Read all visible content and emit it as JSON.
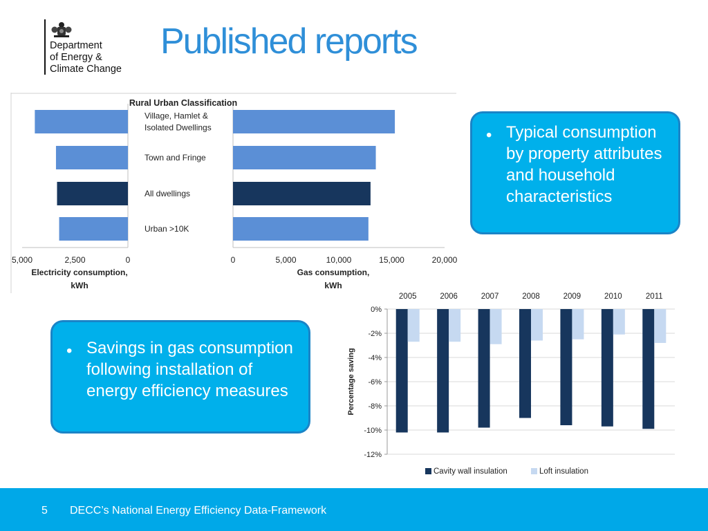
{
  "logo": {
    "lines": [
      "Department",
      "of Energy &",
      "Climate Change"
    ],
    "icon": "royal-crest-icon"
  },
  "title": "Published reports",
  "callouts": {
    "typical": {
      "bullet": "•",
      "text": "Typical consumption by property attributes and household characteristics"
    },
    "savings": {
      "bullet": "•",
      "text": "Savings in gas consumption following installation of energy efficiency measures"
    }
  },
  "footer": {
    "page_number": "5",
    "text": "DECC’s National Energy Efficiency Data-Framework"
  },
  "colors": {
    "light_bar": "#5b8fd6",
    "dark_bar": "#17365d",
    "loft": "#c6d9f1",
    "callout_fill": "#00b0eb",
    "callout_border": "#1a84c7",
    "footer": "#00a8e8",
    "title": "#2f8fd8"
  },
  "chart_data": [
    {
      "type": "bar",
      "orientation": "horizontal",
      "title": "Rural Urban Classification",
      "categories": [
        [
          "Village, Hamlet &",
          "Isolated Dwellings"
        ],
        [
          "Town and Fringe"
        ],
        [
          "All dwellings"
        ],
        [
          "Urban >10K"
        ]
      ],
      "series": [
        {
          "name": "Electricity consumption",
          "values": [
            4400,
            3400,
            3350,
            3250
          ]
        },
        {
          "name": "Gas consumption",
          "values": [
            15300,
            13500,
            13000,
            12800
          ]
        }
      ],
      "highlight_index": 2,
      "electricity_axis": {
        "label": "Electricity consumption, kWh",
        "ticks": [
          "5,000",
          "2,500",
          "0"
        ],
        "tick_values": [
          5000,
          2500,
          0
        ],
        "xlim": [
          0,
          5000
        ],
        "reversed": true
      },
      "gas_axis": {
        "label": "Gas consumption, kWh",
        "ticks": [
          "0",
          "5,000",
          "10,000",
          "15,000",
          "20,000"
        ],
        "tick_values": [
          0,
          5000,
          10000,
          15000,
          20000
        ],
        "xlim": [
          0,
          20000
        ]
      },
      "grid": false
    },
    {
      "type": "bar",
      "categories": [
        "2005",
        "2006",
        "2007",
        "2008",
        "2009",
        "2010",
        "2011"
      ],
      "series": [
        {
          "name": "Cavity wall insulation",
          "values": [
            -10.2,
            -10.2,
            -9.8,
            -9.0,
            -9.6,
            -9.7,
            -9.9
          ]
        },
        {
          "name": "Loft insulation",
          "values": [
            -2.7,
            -2.7,
            -2.9,
            -2.6,
            -2.5,
            -2.1,
            -2.8
          ]
        }
      ],
      "ylabel": "Percentage saving",
      "ylim": [
        -12,
        0
      ],
      "yticks": [
        "0%",
        "-2%",
        "-4%",
        "-6%",
        "-8%",
        "-10%",
        "-12%"
      ],
      "ytick_values": [
        0,
        -2,
        -4,
        -6,
        -8,
        -10,
        -12
      ],
      "xaxis_position": "top",
      "grid": true,
      "legend": "bottom"
    }
  ]
}
